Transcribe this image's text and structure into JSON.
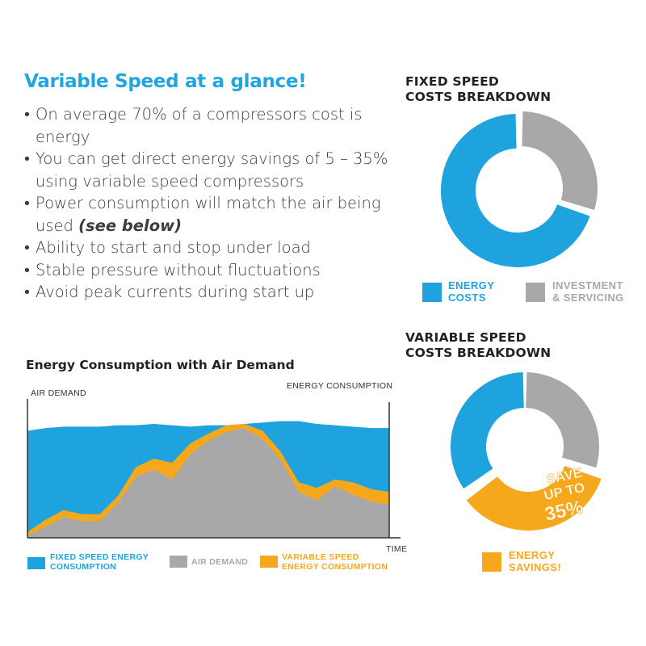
{
  "colors": {
    "blue": "#1ea3de",
    "gray": "#a8a8a8",
    "orange": "#f6a81c",
    "title": "#1fa5e0"
  },
  "headline": "Variable Speed at a glance!",
  "bullets": [
    {
      "text": "On average 70% of a compressors cost is energy",
      "emphasis": ""
    },
    {
      "text": "You can get direct energy savings of 5 – 35% using variable speed compressors",
      "emphasis": ""
    },
    {
      "text": "Power consumption will match the air being used ",
      "emphasis": "(see below)"
    },
    {
      "text": "Ability to start and stop under load",
      "emphasis": ""
    },
    {
      "text": "Stable pressure without fluctuations",
      "emphasis": ""
    },
    {
      "text": "Avoid peak currents during start up",
      "emphasis": ""
    }
  ],
  "chart_data": [
    {
      "type": "pie",
      "title": "FIXED SPEED COSTS BREAKDOWN",
      "title_lines": [
        "FIXED SPEED",
        "COSTS BREAKDOWN"
      ],
      "slices": [
        {
          "label": "ENERGY COSTS",
          "label_lines": [
            "ENERGY",
            "COSTS"
          ],
          "value": 70,
          "color": "#1ea3de"
        },
        {
          "label": "INVESTMENT & SERVICING",
          "label_lines": [
            "INVESTMENT",
            "& SERVICING"
          ],
          "value": 30,
          "color": "#a8a8a8"
        }
      ],
      "legend_position": "bottom"
    },
    {
      "type": "pie",
      "title": "VARIABLE SPEED COSTS BREAKDOWN",
      "title_lines": [
        "VARIABLE SPEED",
        "COSTS BREAKDOWN"
      ],
      "slices": [
        {
          "label": "",
          "value": 35,
          "color": "#1ea3de"
        },
        {
          "label": "",
          "value": 30,
          "color": "#a8a8a8"
        },
        {
          "label": "ENERGY SAVINGS!",
          "label_lines": [
            "ENERGY",
            "SAVINGS!"
          ],
          "value": 35,
          "color": "#f6a81c"
        }
      ],
      "annotation": [
        "SAVE",
        "UP TO",
        "35%"
      ],
      "legend_position": "bottom"
    },
    {
      "type": "area",
      "title": "Energy Consumption with Air Demand",
      "xlabel": "TIME",
      "ylabel": "AIR DEMAND",
      "y2label": "ENERGY CONSUMPTION",
      "ylim": [
        0,
        100
      ],
      "x": [
        0,
        1,
        2,
        3,
        4,
        5,
        6,
        7,
        8,
        9,
        10,
        11,
        12,
        13,
        14,
        15,
        16,
        17,
        18,
        19,
        20
      ],
      "series": [
        {
          "name": "FIXED SPEED ENERGY CONSUMPTION",
          "color": "#1ea3de",
          "values": [
            77,
            79,
            80,
            80,
            80,
            81,
            81,
            82,
            81,
            80,
            81,
            81,
            82,
            83,
            84,
            84,
            82,
            81,
            80,
            79,
            79
          ]
        },
        {
          "name": "VARIABLE SPEED ENERGY CONSUMPTION",
          "color": "#f6a81c",
          "values": [
            4,
            13,
            20,
            17,
            17,
            30,
            51,
            57,
            54,
            68,
            75,
            81,
            82,
            77,
            62,
            40,
            36,
            42,
            40,
            35,
            33
          ]
        },
        {
          "name": "AIR DEMAND",
          "color": "#a8a8a8",
          "values": [
            1,
            8,
            15,
            12,
            12,
            25,
            44,
            49,
            42,
            60,
            70,
            76,
            79,
            71,
            56,
            33,
            27,
            37,
            31,
            26,
            24
          ]
        }
      ],
      "legend_position": "bottom"
    }
  ]
}
